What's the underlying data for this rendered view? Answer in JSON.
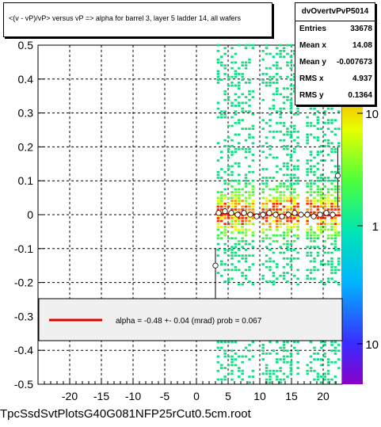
{
  "chart_data": {
    "type": "heatmap",
    "title": "<(v - vP)/vP> versus   vP => alpha for barrel 3, layer 5 ladder 14, all wafers",
    "xlim": [
      -25,
      23
    ],
    "ylim": [
      -0.5,
      0.5
    ],
    "x_ticks": [
      "-20",
      "-15",
      "-10",
      "-5",
      "0",
      "5",
      "10",
      "15",
      "20"
    ],
    "y_ticks": [
      "-0.5",
      "-0.4",
      "-0.3",
      "-0.2",
      "-0.1",
      "0",
      "0.1",
      "0.2",
      "0.3",
      "0.4",
      "0.5"
    ],
    "x_tick_values": [
      -20,
      -15,
      -10,
      -5,
      0,
      5,
      10,
      15,
      20
    ],
    "y_tick_values": [
      -0.5,
      -0.4,
      -0.3,
      -0.2,
      -0.1,
      0,
      0.1,
      0.2,
      0.3,
      0.4,
      0.5
    ],
    "grid": true,
    "colorbar": {
      "scale": "log",
      "labels": [
        "10",
        "1",
        "10"
      ],
      "label_values": [
        10,
        1,
        0.1
      ]
    },
    "occupied_x_bands": [
      [
        3.2,
        9.0
      ],
      [
        10.3,
        16.2
      ],
      [
        17.3,
        22.8
      ]
    ],
    "profile_points": [
      {
        "x": 3.0,
        "y": -0.15
      },
      {
        "x": 3.5,
        "y": 0.005
      },
      {
        "x": 4.5,
        "y": 0.01
      },
      {
        "x": 5.5,
        "y": 0.005
      },
      {
        "x": 6.5,
        "y": 0.0
      },
      {
        "x": 7.5,
        "y": 0.005
      },
      {
        "x": 8.5,
        "y": 0.0
      },
      {
        "x": 9.5,
        "y": -0.005
      },
      {
        "x": 10.5,
        "y": 0.0
      },
      {
        "x": 11.5,
        "y": 0.005
      },
      {
        "x": 12.5,
        "y": 0.0
      },
      {
        "x": 13.5,
        "y": -0.005
      },
      {
        "x": 14.5,
        "y": 0.0
      },
      {
        "x": 15.5,
        "y": 0.005
      },
      {
        "x": 16.5,
        "y": 0.0
      },
      {
        "x": 17.5,
        "y": 0.0
      },
      {
        "x": 18.5,
        "y": -0.005
      },
      {
        "x": 19.5,
        "y": 0.0
      },
      {
        "x": 20.5,
        "y": 0.005
      },
      {
        "x": 21.5,
        "y": 0.0
      },
      {
        "x": 22.3,
        "y": 0.115
      }
    ],
    "fit_line": {
      "x": [
        3.0,
        22.8
      ],
      "y": [
        0.003,
        -0.002
      ],
      "color": "#ff0000"
    },
    "legend": {
      "text": "alpha =   -0.48 +-  0.04 (mrad) prob = 0.067",
      "line_color": "#dd0000"
    }
  },
  "stats": {
    "name": "dvOvertvPvP5014",
    "rows": [
      {
        "label": "Entries",
        "value": "33678"
      },
      {
        "label": "Mean x",
        "value": "14.08"
      },
      {
        "label": "Mean y",
        "value": "-0.007673"
      },
      {
        "label": "RMS x",
        "value": "4.937"
      },
      {
        "label": "RMS y",
        "value": "0.1364"
      }
    ]
  },
  "footer": "TpcSsdSvtPlotsG40G081NFP25rCut0.5cm.root"
}
